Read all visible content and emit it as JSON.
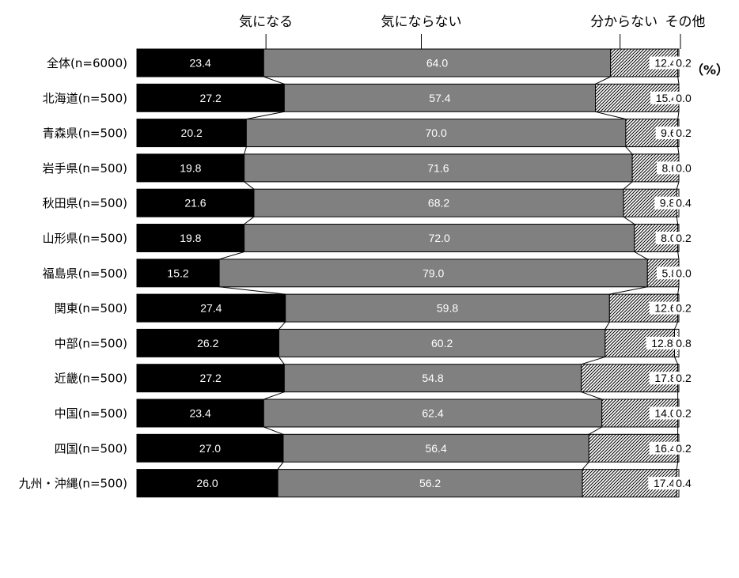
{
  "chart_data": {
    "type": "bar",
    "orientation": "horizontal",
    "stacked": true,
    "unit": "（%）",
    "xlim": [
      0,
      100
    ],
    "categories": [
      "全体(n=6000)",
      "北海道(n=500)",
      "青森県(n=500)",
      "岩手県(n=500)",
      "秋田県(n=500)",
      "山形県(n=500)",
      "福島県(n=500)",
      "関東(n=500)",
      "中部(n=500)",
      "近畿(n=500)",
      "中国(n=500)",
      "四国(n=500)",
      "九州・沖縄(n=500)"
    ],
    "series": [
      {
        "name": "気になる",
        "color": "#000000",
        "label_color": "#ffffff",
        "values": [
          23.4,
          27.2,
          20.2,
          19.8,
          21.6,
          19.8,
          15.2,
          27.4,
          26.2,
          27.2,
          23.4,
          27.0,
          26.0
        ],
        "labels": [
          "23.4",
          "27.2",
          "20.2",
          "19.8",
          "21.6",
          "19.8",
          "15.2",
          "27.4",
          "26.2",
          "27.2",
          "23.4",
          "27.0",
          "26.0"
        ]
      },
      {
        "name": "気にならない",
        "color": "#808080",
        "label_color": "#ffffff",
        "values": [
          64.0,
          57.4,
          70.0,
          71.6,
          68.2,
          72.0,
          79.0,
          59.8,
          60.2,
          54.8,
          62.4,
          56.4,
          56.2
        ],
        "labels": [
          "64.0",
          "57.4",
          "70.0",
          "71.6",
          "68.2",
          "72.0",
          "79.0",
          "59.8",
          "60.2",
          "54.8",
          "62.4",
          "56.4",
          "56.2"
        ]
      },
      {
        "name": "分からない",
        "color": "#ffffff",
        "pattern": "diagonal-hatch",
        "label_color": "#000000",
        "values": [
          12.4,
          15.4,
          9.6,
          8.6,
          9.8,
          8.0,
          5.8,
          12.6,
          12.8,
          17.8,
          14.0,
          16.4,
          17.4
        ],
        "labels": [
          "12.4",
          "15.4",
          "9.6",
          "8.6",
          "9.8",
          "8.0",
          "5.8",
          "12.6",
          "12.8",
          "17.8",
          "14.0",
          "16.4",
          "17.4"
        ]
      },
      {
        "name": "その他",
        "color": "#ffffff",
        "pattern": "checkered",
        "label_color": "#000000",
        "values": [
          0.2,
          0.0,
          0.2,
          0.0,
          0.4,
          0.2,
          0.0,
          0.2,
          0.8,
          0.2,
          0.2,
          0.2,
          0.4
        ],
        "labels": [
          "0.2",
          "0.0",
          "0.2",
          "0.0",
          "0.4",
          "0.2",
          "0.0",
          "0.2",
          "0.8",
          "0.2",
          "0.2",
          "0.2",
          "0.4"
        ]
      }
    ]
  }
}
